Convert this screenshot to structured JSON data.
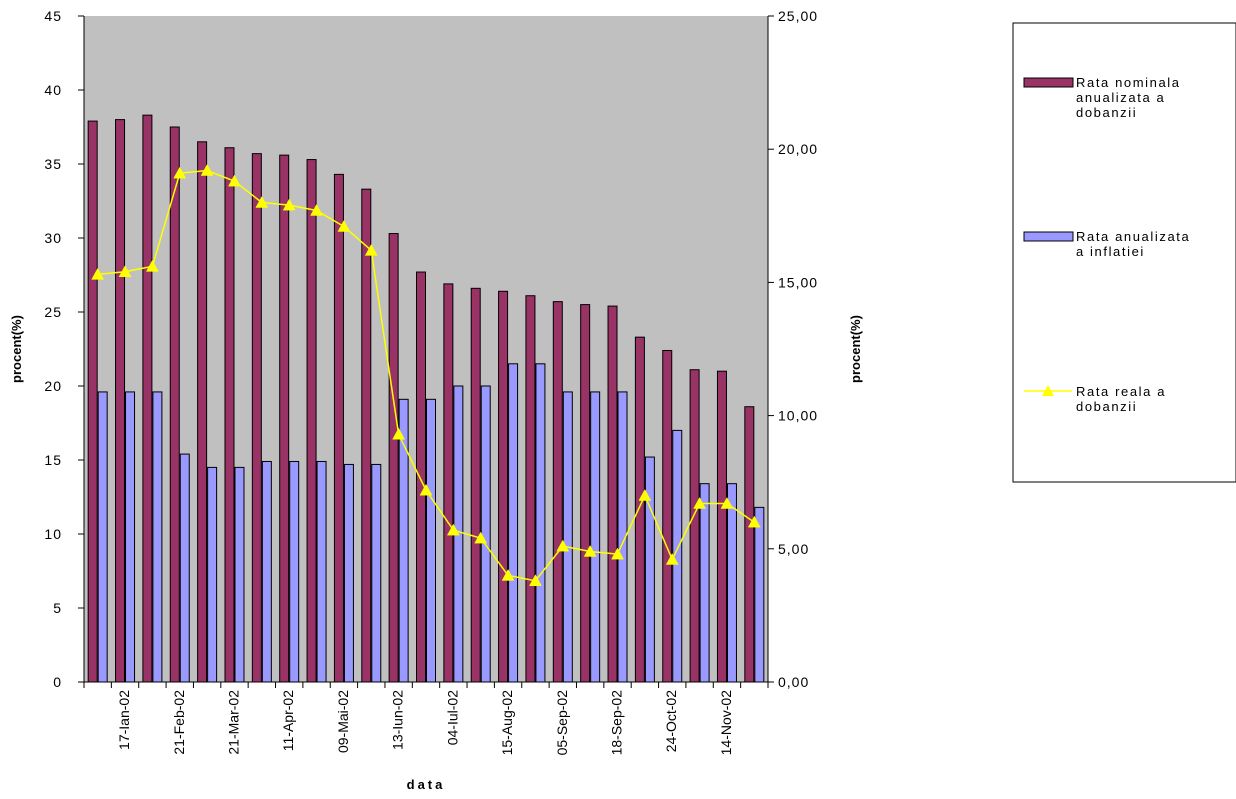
{
  "chart_data": {
    "type": "bar",
    "x_title": "data",
    "y_left_title": "procent(%)",
    "y_right_title": "procent(%)",
    "y_left_range": [
      0,
      45
    ],
    "y_left_ticks": [
      "0",
      "5",
      "10",
      "15",
      "20",
      "25",
      "30",
      "35",
      "40",
      "45"
    ],
    "y_right_range": [
      0,
      25
    ],
    "y_right_ticks": [
      "0,00",
      "5,00",
      "10,00",
      "15,00",
      "20,00",
      "25,00"
    ],
    "x_tick_labels": [
      {
        "index": 1,
        "label": "17-Ian-02"
      },
      {
        "index": 3,
        "label": "21-Feb-02"
      },
      {
        "index": 5,
        "label": "21-Mar-02"
      },
      {
        "index": 7,
        "label": "11-Apr-02"
      },
      {
        "index": 9,
        "label": "09-Mai-02"
      },
      {
        "index": 11,
        "label": "13-Iun-02"
      },
      {
        "index": 13,
        "label": "04-Iul-02"
      },
      {
        "index": 15,
        "label": "15-Aug-02"
      },
      {
        "index": 17,
        "label": "05-Sep-02"
      },
      {
        "index": 19,
        "label": "18-Sep-02"
      },
      {
        "index": 21,
        "label": "24-Oct-02"
      },
      {
        "index": 23,
        "label": "14-Nov-02"
      }
    ],
    "category_count": 25,
    "grid": false,
    "legend_position": "right",
    "plot_background": "#c0c0c0",
    "series": [
      {
        "name": "Rata nominala anualizata a dobanzii",
        "kind": "bar",
        "axis": "left",
        "color": "#993366",
        "values": [
          37.9,
          38.0,
          38.3,
          37.5,
          36.5,
          36.1,
          35.7,
          35.6,
          35.3,
          34.3,
          33.3,
          30.3,
          27.7,
          26.9,
          26.6,
          26.4,
          26.1,
          25.7,
          25.5,
          25.4,
          23.3,
          22.4,
          21.1,
          21.0,
          18.6
        ]
      },
      {
        "name": "Rata anualizata a inflatiei",
        "kind": "bar",
        "axis": "left",
        "color": "#9999ff",
        "values": [
          19.6,
          19.6,
          19.6,
          15.4,
          14.5,
          14.5,
          14.9,
          14.9,
          14.9,
          14.7,
          14.7,
          19.1,
          19.1,
          20.0,
          20.0,
          21.5,
          21.5,
          19.6,
          19.6,
          19.6,
          15.2,
          17.0,
          13.4,
          13.4,
          11.8
        ]
      },
      {
        "name": "Rata reala a dobanzii",
        "kind": "line",
        "axis": "right",
        "color": "#ffff00",
        "values": [
          15.3,
          15.4,
          15.6,
          19.1,
          19.2,
          18.8,
          18.0,
          17.9,
          17.7,
          17.1,
          16.2,
          9.3,
          7.2,
          5.7,
          5.4,
          4.0,
          3.8,
          5.1,
          4.9,
          4.8,
          7.0,
          4.6,
          6.7,
          6.7,
          6.0
        ]
      }
    ]
  }
}
